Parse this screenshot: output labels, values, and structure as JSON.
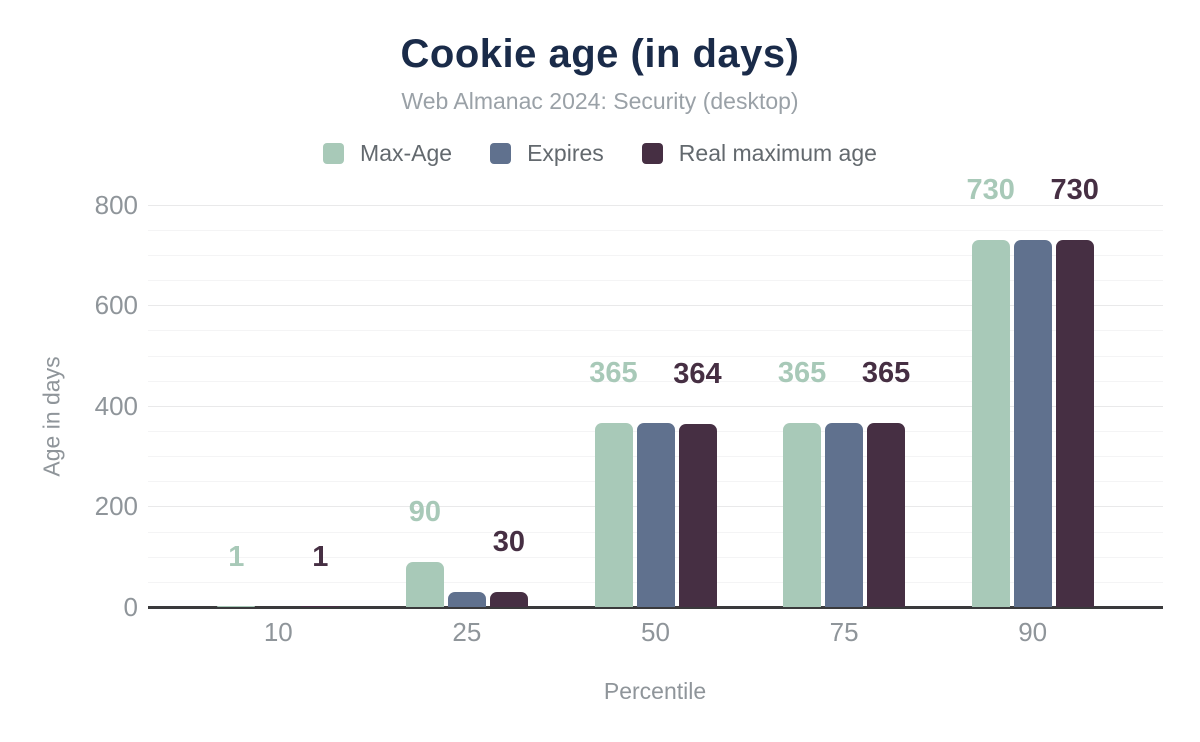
{
  "figure": {
    "title": "Cookie age (in days)",
    "subtitle": "Web Almanac 2024: Security (desktop)"
  },
  "legend": [
    {
      "name": "Max-Age",
      "color": "#a8c9b8"
    },
    {
      "name": "Expires",
      "color": "#60718e"
    },
    {
      "name": "Real maximum age",
      "color": "#462f43"
    }
  ],
  "chart_data": {
    "type": "bar",
    "title": "Cookie age (in days)",
    "subtitle": "Web Almanac 2024: Security (desktop)",
    "categories": [
      "10",
      "25",
      "50",
      "75",
      "90"
    ],
    "xlabel": "Percentile",
    "ylabel": "Age in days",
    "ylim": [
      0,
      800
    ],
    "ytick_step": 200,
    "minor_grid_step": 50,
    "grid": true,
    "legend_position": "top",
    "series": [
      {
        "name": "Max-Age",
        "color": "#a8c9b8",
        "values": [
          1,
          90,
          365,
          365,
          730
        ],
        "labels": [
          "1",
          "90",
          "365",
          "365",
          "730"
        ],
        "show_labels": true
      },
      {
        "name": "Expires",
        "color": "#60718e",
        "values": [
          0,
          30,
          365,
          365,
          730
        ],
        "labels": [
          "",
          "",
          "",
          "",
          ""
        ],
        "show_labels": false
      },
      {
        "name": "Real maximum age",
        "color": "#462f43",
        "values": [
          1,
          30,
          364,
          365,
          730
        ],
        "labels": [
          "1",
          "30",
          "364",
          "365",
          "730"
        ],
        "show_labels": true
      }
    ],
    "colors": {
      "title": "#1a2b49",
      "subtitle": "#9aa1a7",
      "tick_text": "#8f959a",
      "legend_text": "#63696e",
      "axis_line": "#3a3a3c",
      "grid_minor": "#f4f4f5",
      "grid_major": "#e9e9ea",
      "background": "#ffffff"
    }
  }
}
